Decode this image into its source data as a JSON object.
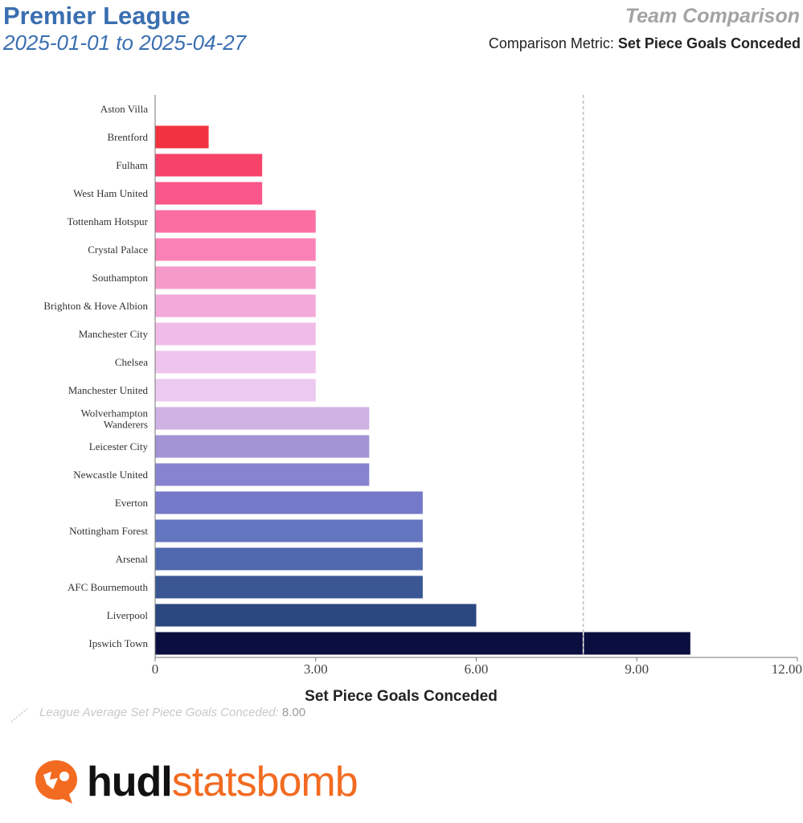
{
  "header": {
    "title": "Premier League",
    "subtitle": "2025-01-01 to 2025-04-27",
    "right_title": "Team Comparison",
    "metric_prefix": "Comparison Metric:",
    "metric_name": "Set Piece Goals Conceded"
  },
  "chart_data": {
    "type": "bar",
    "orientation": "horizontal",
    "categories": [
      "Aston Villa",
      "Brentford",
      "Fulham",
      "West Ham United",
      "Tottenham Hotspur",
      "Crystal Palace",
      "Southampton",
      "Brighton & Hove Albion",
      "Manchester City",
      "Chelsea",
      "Manchester United",
      "Wolverhampton Wanderers",
      "Leicester City",
      "Newcastle United",
      "Everton",
      "Nottingham Forest",
      "Arsenal",
      "AFC Bournemouth",
      "Liverpool",
      "Ipswich Town"
    ],
    "values": [
      0,
      1,
      2,
      2,
      3,
      3,
      3,
      3,
      3,
      3,
      3,
      4,
      4,
      4,
      5,
      5,
      5,
      5,
      6,
      10
    ],
    "colors": [
      "#f3323f",
      "#f3323f",
      "#f7426a",
      "#f9578a",
      "#fb6ea2",
      "#fa81b5",
      "#f59ac9",
      "#f3a9da",
      "#f1bbe7",
      "#eec4ec",
      "#ecc9f0",
      "#cfb2e4",
      "#a293d5",
      "#8783cf",
      "#7479c9",
      "#6475bf",
      "#5068ad",
      "#3a5693",
      "#2a4780",
      "#0b0f3f"
    ],
    "xlabel": "Set Piece Goals Conceded",
    "xlim": [
      0,
      12
    ],
    "xticks": [
      0,
      3,
      6,
      9,
      12
    ],
    "xtick_labels": [
      "0",
      "3.00",
      "6.00",
      "9.00",
      "12.00"
    ],
    "reference_line": {
      "value": 8,
      "label": "League Average Set Piece Goals Conceded:",
      "value_label": "8.00"
    }
  },
  "logo": {
    "part1": "hudl",
    "part2": "statsbomb"
  },
  "colors": {
    "title": "#3a6fb0",
    "accent": "#f26b21"
  }
}
